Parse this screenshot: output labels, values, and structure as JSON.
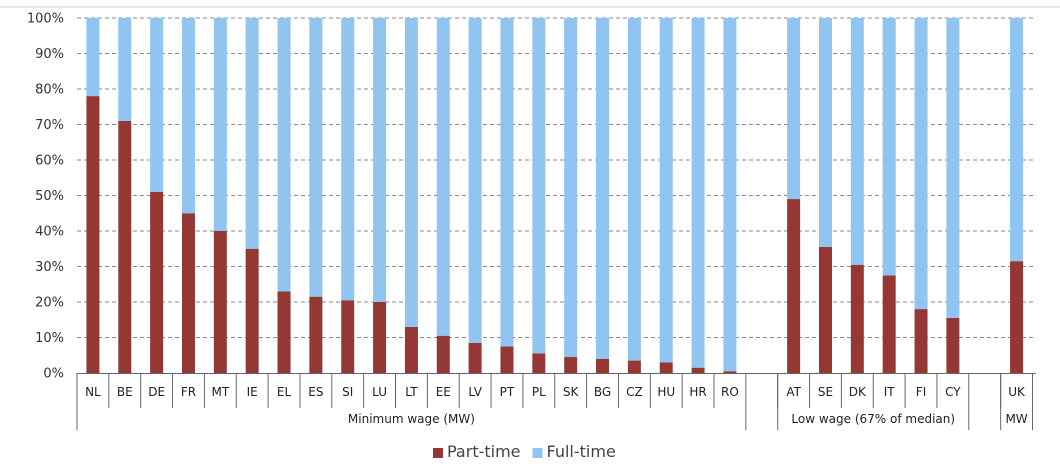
{
  "chart_data": {
    "type": "bar",
    "stacked": true,
    "ylim": [
      0,
      100
    ],
    "y_ticks": [
      "0%",
      "10%",
      "20%",
      "30%",
      "40%",
      "50%",
      "60%",
      "70%",
      "80%",
      "90%",
      "100%"
    ],
    "grid": "horizontal dashed",
    "legend_position": "bottom",
    "groups": [
      {
        "label": "Minimum wage (MW)",
        "categories": [
          "NL",
          "BE",
          "DE",
          "FR",
          "MT",
          "IE",
          "EL",
          "ES",
          "SI",
          "LU",
          "LT",
          "EE",
          "LV",
          "PT",
          "PL",
          "SK",
          "BG",
          "CZ",
          "HU",
          "HR",
          "RO"
        ]
      },
      {
        "label": "Low wage (67% of median)",
        "categories": [
          "AT",
          "SE",
          "DK",
          "IT",
          "FI",
          "CY"
        ]
      },
      {
        "label": "MW",
        "categories": [
          "UK"
        ]
      }
    ],
    "series": [
      {
        "name": "Part-time",
        "color": "#953735",
        "values": [
          78,
          71,
          51,
          45,
          40,
          35,
          23,
          21.5,
          20.5,
          20,
          13,
          10.5,
          8.5,
          7.5,
          5.5,
          4.5,
          4,
          3.5,
          3,
          1.5,
          0.5,
          49,
          35.5,
          30.5,
          27.5,
          18,
          15.5,
          31.5
        ]
      },
      {
        "name": "Full-time",
        "color": "#8fc5f0",
        "values": [
          22,
          29,
          49,
          55,
          60,
          65,
          77,
          78.5,
          79.5,
          80,
          87,
          89.5,
          91.5,
          92.5,
          94.5,
          95.5,
          96,
          96.5,
          97,
          98.5,
          99.5,
          51,
          64.5,
          69.5,
          72.5,
          82,
          84.5,
          68.5
        ]
      }
    ]
  }
}
